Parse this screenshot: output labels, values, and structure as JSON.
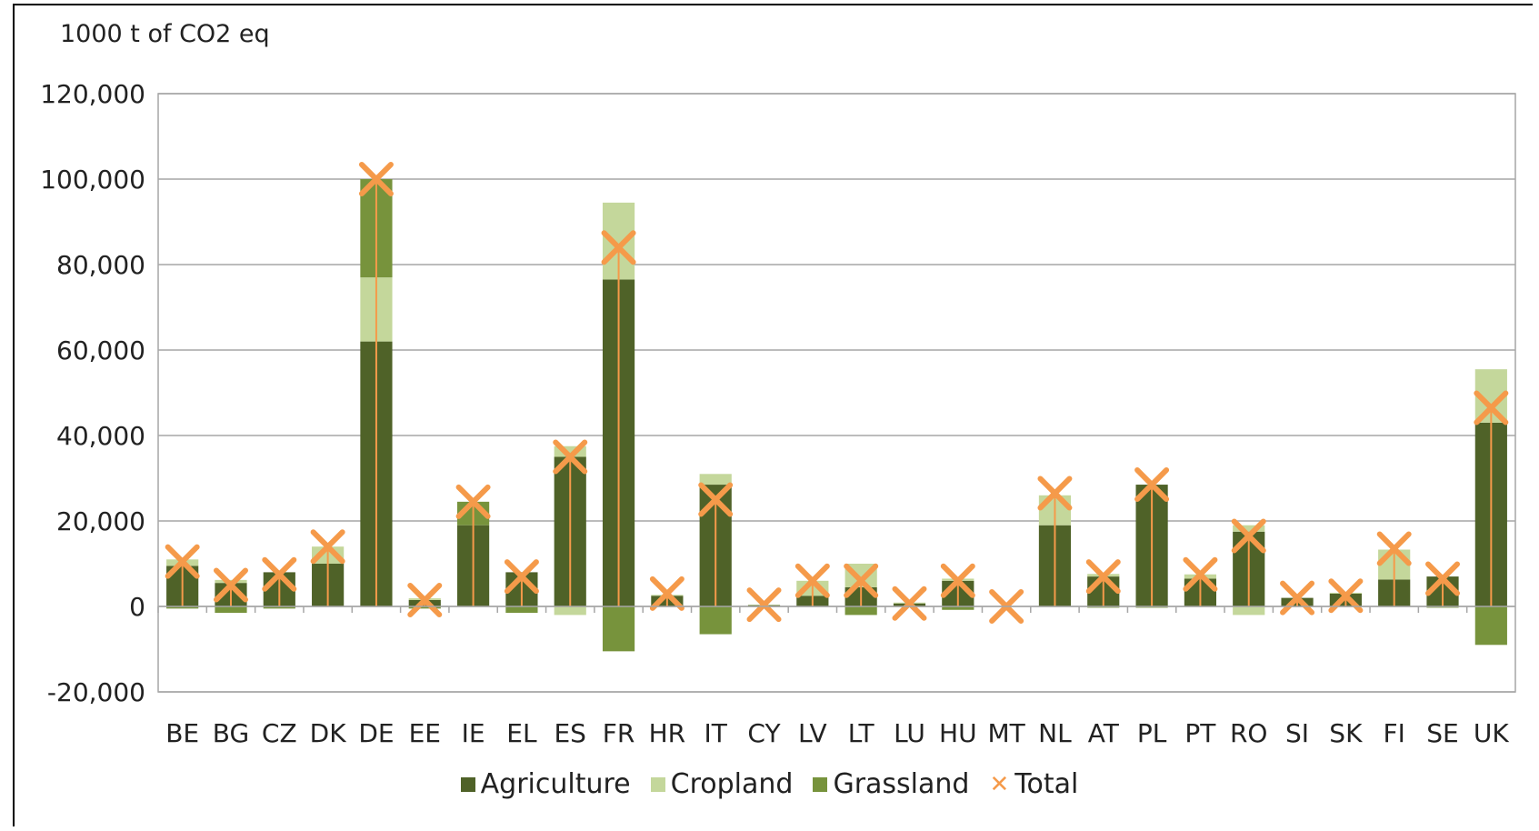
{
  "chart_data": {
    "type": "bar",
    "unit_label": "1000 t of CO2 eq",
    "ylim": [
      -20000,
      120000
    ],
    "y_ticks": [
      "120,000",
      "100,000",
      "80,000",
      "60,000",
      "40,000",
      "20,000",
      "0",
      "-20,000"
    ],
    "y_tick_values": [
      120000,
      100000,
      80000,
      60000,
      40000,
      20000,
      0,
      -20000
    ],
    "categories": [
      "BE",
      "BG",
      "CZ",
      "DK",
      "DE",
      "EE",
      "IE",
      "EL",
      "ES",
      "FR",
      "HR",
      "IT",
      "CY",
      "LV",
      "LT",
      "LU",
      "HU",
      "MT",
      "NL",
      "AT",
      "PL",
      "PT",
      "RO",
      "SI",
      "SK",
      "FI",
      "SE",
      "UK"
    ],
    "series": [
      {
        "name": "Agriculture",
        "color": "#4f6228",
        "values": [
          9500,
          5500,
          8000,
          10000,
          62000,
          1500,
          19000,
          8000,
          35000,
          76500,
          2500,
          28500,
          300,
          2500,
          4500,
          700,
          6000,
          100,
          19000,
          7000,
          28500,
          6500,
          17500,
          2000,
          3000,
          6300,
          7000,
          43000
        ]
      },
      {
        "name": "Cropland",
        "color": "#c4d79b",
        "values": [
          1500,
          700,
          0,
          4000,
          15000,
          400,
          0,
          0,
          2500,
          18000,
          200,
          2500,
          100,
          3500,
          5500,
          200,
          500,
          0,
          7000,
          600,
          0,
          1000,
          1500,
          0,
          200,
          7000,
          0,
          12500
        ]
      },
      {
        "name": "Grassland",
        "color": "#77933c",
        "values": [
          0,
          0,
          0,
          0,
          23000,
          0,
          5500,
          0,
          0,
          0,
          0,
          0,
          0,
          0,
          0,
          0,
          0,
          0,
          0,
          0,
          0,
          0,
          0,
          0,
          0,
          0,
          0,
          0
        ]
      },
      {
        "name": "Cropland (negative)",
        "color": "#c4d79b",
        "values": [
          0,
          0,
          0,
          0,
          0,
          0,
          0,
          0,
          -2000,
          0,
          0,
          0,
          0,
          0,
          0,
          0,
          0,
          0,
          0,
          0,
          0,
          0,
          -2000,
          0,
          0,
          0,
          0,
          0
        ]
      },
      {
        "name": "Grassland (negative)",
        "color": "#77933c",
        "values": [
          -500,
          -1500,
          -500,
          0,
          0,
          -500,
          0,
          -1500,
          0,
          -10500,
          0,
          -6500,
          0,
          0,
          -2000,
          0,
          -800,
          0,
          0,
          -300,
          -300,
          0,
          0,
          0,
          0,
          0,
          -300,
          -9000
        ]
      },
      {
        "name": "Total",
        "color": "#f59a4a",
        "marker": "x",
        "values": [
          10500,
          5000,
          7500,
          14000,
          100000,
          1500,
          24500,
          7000,
          35000,
          84000,
          3000,
          25000,
          400,
          6000,
          6000,
          700,
          6000,
          0,
          26500,
          7000,
          28500,
          7500,
          16500,
          2000,
          2500,
          13500,
          6500,
          46500
        ]
      }
    ],
    "legend": [
      {
        "label": "Agriculture",
        "color": "#4f6228",
        "marker": "square"
      },
      {
        "label": "Cropland",
        "color": "#c4d79b",
        "marker": "square"
      },
      {
        "label": "Grassland",
        "color": "#77933c",
        "marker": "square"
      },
      {
        "label": "Total",
        "color": "#f59a4a",
        "marker": "x"
      }
    ],
    "legend_position": "bottom",
    "grid": true
  }
}
